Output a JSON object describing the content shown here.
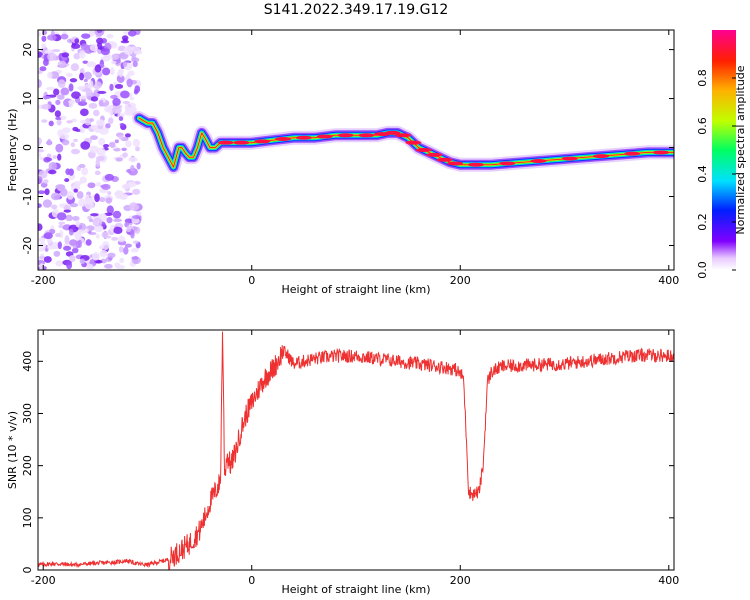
{
  "title": "S141.2022.349.17.19.G12",
  "chart_data": [
    {
      "type": "heatmap",
      "xlabel": "Height of straight line (km)",
      "ylabel": "Frequency (Hz)",
      "xlim": [
        -205,
        405
      ],
      "ylim": [
        -25,
        24
      ],
      "xticks": [
        -200,
        0,
        200,
        400
      ],
      "yticks": [
        -20,
        -10,
        0,
        10,
        20
      ],
      "colorbar": {
        "label": "Normalized spectral amplitude",
        "range": [
          0,
          1
        ],
        "ticks": [
          "0.0",
          "0.2",
          "0.4",
          "0.6",
          "0.8"
        ],
        "tick_values": [
          0.0,
          0.2,
          0.4,
          0.6,
          0.8
        ]
      },
      "noise_region": {
        "x_range": [
          -205,
          -108
        ],
        "y_range": [
          -25,
          24
        ]
      },
      "ridge": {
        "x": [
          -108,
          -100,
          -95,
          -90,
          -85,
          -80,
          -75,
          -70,
          -67,
          -64,
          -60,
          -56,
          -52,
          -48,
          -45,
          -40,
          -35,
          -30,
          -20,
          0,
          20,
          40,
          60,
          80,
          100,
          120,
          130,
          140,
          150,
          160,
          170,
          180,
          190,
          200,
          230,
          260,
          290,
          320,
          350,
          380,
          405
        ],
        "y": [
          6,
          5,
          5,
          3,
          0,
          -2,
          -4,
          0,
          0,
          -1,
          -2,
          -2,
          0,
          3,
          2,
          0,
          0,
          1,
          1,
          1,
          1.5,
          2,
          2,
          2.5,
          2.5,
          2.5,
          3,
          3,
          2,
          0,
          -1,
          -2,
          -3,
          -3.5,
          -3.5,
          -3,
          -2.5,
          -2,
          -1.5,
          -1,
          -1
        ]
      }
    },
    {
      "type": "line",
      "xlabel": "Height of straight line (km)",
      "ylabel": "SNR (10 * v/v)",
      "xlim": [
        -205,
        405
      ],
      "ylim": [
        0,
        460
      ],
      "xticks": [
        -200,
        0,
        200,
        400
      ],
      "yticks": [
        0,
        100,
        200,
        300,
        400
      ],
      "color": "#ee3030",
      "series": [
        {
          "x": [
            -205,
            -190,
            -170,
            -150,
            -130,
            -120,
            -110,
            -100,
            -90,
            -80,
            -70,
            -60,
            -50,
            -45,
            -40,
            -35,
            -30,
            -28,
            -26,
            -24,
            -20,
            -15,
            -10,
            -5,
            0,
            5,
            10,
            15,
            20,
            25,
            30,
            35,
            40,
            50,
            60,
            80,
            100,
            120,
            140,
            160,
            180,
            195,
            203,
            206,
            208,
            212,
            218,
            222,
            226,
            230,
            240,
            260,
            280,
            300,
            320,
            340,
            360,
            380,
            405
          ],
          "y": [
            10,
            12,
            10,
            13,
            15,
            18,
            12,
            10,
            15,
            20,
            35,
            50,
            75,
            100,
            130,
            150,
            170,
            460,
            180,
            220,
            200,
            230,
            270,
            300,
            320,
            340,
            360,
            375,
            385,
            400,
            420,
            410,
            395,
            400,
            405,
            410,
            410,
            405,
            400,
            395,
            390,
            385,
            370,
            250,
            150,
            145,
            150,
            200,
            360,
            380,
            390,
            392,
            394,
            395,
            400,
            405,
            410,
            412,
            410
          ]
        }
      ]
    }
  ]
}
